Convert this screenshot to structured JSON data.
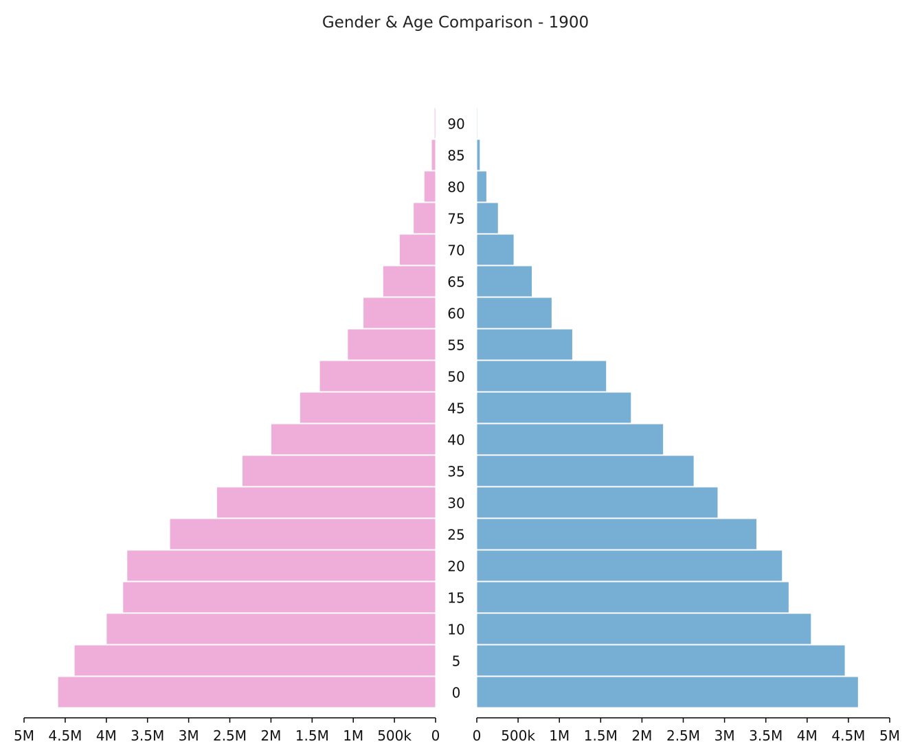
{
  "chart_data": {
    "type": "bar",
    "title": "Gender & Age Comparison - 1900",
    "categories": [
      "0",
      "5",
      "10",
      "15",
      "20",
      "25",
      "30",
      "35",
      "40",
      "45",
      "50",
      "55",
      "60",
      "65",
      "70",
      "75",
      "80",
      "85",
      "90"
    ],
    "series": [
      {
        "color": "#eeaed9",
        "side": "left",
        "values": [
          4590000,
          4390000,
          4000000,
          3800000,
          3750000,
          3230000,
          2660000,
          2350000,
          2000000,
          1650000,
          1410000,
          1070000,
          880000,
          640000,
          440000,
          270000,
          140000,
          50000,
          15000
        ]
      },
      {
        "color": "#77aed3",
        "side": "right",
        "values": [
          4620000,
          4460000,
          4050000,
          3780000,
          3700000,
          3390000,
          2920000,
          2630000,
          2260000,
          1870000,
          1570000,
          1160000,
          910000,
          670000,
          450000,
          260000,
          120000,
          40000,
          10000
        ]
      }
    ],
    "left_ticks": [
      "5M",
      "4.5M",
      "4M",
      "3.5M",
      "3M",
      "2.5M",
      "2M",
      "1.5M",
      "1M",
      "500k",
      "0"
    ],
    "right_ticks": [
      "0",
      "500k",
      "1M",
      "1.5M",
      "2M",
      "2.5M",
      "3M",
      "3.5M",
      "4M",
      "4.5M",
      "5M"
    ],
    "xlim": [
      0,
      5000000
    ],
    "grid": false,
    "legend": "none"
  }
}
